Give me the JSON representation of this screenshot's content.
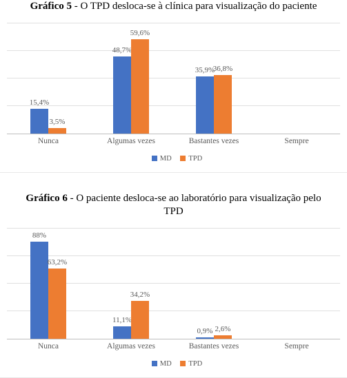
{
  "chart5": {
    "type": "bar",
    "title_prefix": "Gráfico 5",
    "title_rest": " - O TPD desloca-se à clínica para visualização do paciente",
    "title_fontsize": 15,
    "categories": [
      "Nunca",
      "Algumas vezes",
      "Bastantes vezes",
      "Sempre"
    ],
    "series": [
      {
        "name": "MD",
        "color": "#4472c4",
        "values": [
          15.4,
          48.7,
          35.9,
          0
        ],
        "labels": [
          "15,4%",
          "48,7%",
          "35,9%",
          ""
        ]
      },
      {
        "name": "TPD",
        "color": "#ed7d31",
        "values": [
          3.5,
          59.6,
          36.8,
          0
        ],
        "labels": [
          "3,5%",
          "59,6%",
          "36,8%",
          ""
        ]
      }
    ],
    "ylim": [
      0,
      70
    ],
    "gridlines": [
      0,
      17.5,
      35,
      52.5,
      70
    ],
    "background_color": "#ffffff",
    "grid_color": "#e0e0e0",
    "label_fontsize": 11,
    "label_color": "#595959",
    "axis_label_fontsize": 11.5,
    "legend": {
      "md": "MD",
      "tpd": "TPD"
    }
  },
  "chart6": {
    "type": "bar",
    "title_prefix": "Gráfico 6",
    "title_rest": " - O paciente desloca-se ao laboratório para visualização pelo TPD",
    "title_fontsize": 15,
    "categories": [
      "Nunca",
      "Algumas vezes",
      "Bastantes vezes",
      "Sempre"
    ],
    "series": [
      {
        "name": "MD",
        "color": "#4472c4",
        "values": [
          88,
          11.1,
          0.9,
          0
        ],
        "labels": [
          "88%",
          "11,1%",
          "0,9%",
          ""
        ]
      },
      {
        "name": "TPD",
        "color": "#ed7d31",
        "values": [
          63.2,
          34.2,
          2.6,
          0
        ],
        "labels": [
          "63,2%",
          "34,2%",
          "2,6%",
          ""
        ]
      }
    ],
    "ylim": [
      0,
      100
    ],
    "gridlines": [
      0,
      25,
      50,
      75,
      100
    ],
    "background_color": "#ffffff",
    "grid_color": "#e0e0e0",
    "label_fontsize": 11,
    "label_color": "#595959",
    "axis_label_fontsize": 11.5,
    "legend": {
      "md": "MD",
      "tpd": "TPD"
    }
  }
}
